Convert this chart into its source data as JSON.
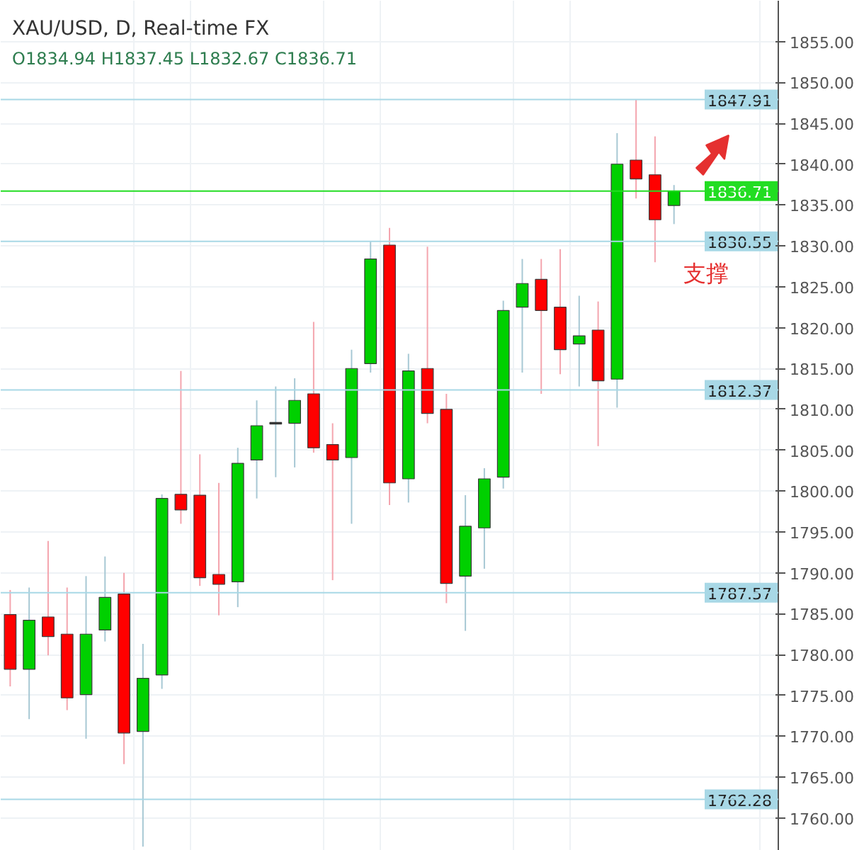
{
  "chart_data": {
    "type": "candlestick",
    "title": "XAU/USD, D, Real-time FX",
    "subtitle": "O1834.94 H1837.45 L1832.67 C1836.71",
    "categories": [
      null,
      null,
      null,
      null,
      null,
      null,
      null,
      null,
      null,
      null,
      null,
      null,
      null,
      null,
      null,
      null,
      null,
      null,
      null,
      null,
      null,
      null,
      null,
      null,
      null,
      null,
      null,
      null,
      null,
      null,
      null,
      null,
      null,
      null,
      null,
      null,
      null,
      null,
      null,
      null,
      null
    ],
    "ohlc": [
      [
        1784.9,
        1787.9,
        1776.1,
        1778.2
      ],
      [
        1778.2,
        1788.2,
        1772.1,
        1784.2
      ],
      [
        1784.6,
        1793.9,
        1779.9,
        1782.2
      ],
      [
        1782.5,
        1788.2,
        1773.2,
        1774.7
      ],
      [
        1775.1,
        1789.6,
        1769.7,
        1782.5
      ],
      [
        1783.0,
        1792.0,
        1781.6,
        1787.0
      ],
      [
        1787.4,
        1790.0,
        1766.6,
        1770.4
      ],
      [
        1770.6,
        1781.3,
        1756.5,
        1777.1
      ],
      [
        1777.5,
        1799.6,
        1775.8,
        1799.1
      ],
      [
        1799.6,
        1814.7,
        1796.0,
        1797.7
      ],
      [
        1799.5,
        1804.5,
        1788.4,
        1789.4
      ],
      [
        1789.8,
        1801.0,
        1784.8,
        1788.6
      ],
      [
        1788.9,
        1805.3,
        1785.8,
        1803.4
      ],
      [
        1803.8,
        1811.1,
        1799.1,
        1808.0
      ],
      [
        1808.2,
        1812.8,
        1801.7,
        1808.4
      ],
      [
        1808.3,
        1813.8,
        1802.9,
        1811.1
      ],
      [
        1811.9,
        1820.7,
        1804.7,
        1805.3
      ],
      [
        1805.7,
        1808.3,
        1789.1,
        1803.8
      ],
      [
        1804.1,
        1817.3,
        1796.0,
        1815.0
      ],
      [
        1815.6,
        1830.6,
        1814.5,
        1828.4
      ],
      [
        1830.1,
        1832.2,
        1798.3,
        1801.0
      ],
      [
        1801.5,
        1816.8,
        1798.6,
        1814.7
      ],
      [
        1815.0,
        1829.9,
        1808.3,
        1809.5
      ],
      [
        1810.0,
        1811.9,
        1786.3,
        1788.7
      ],
      [
        1789.6,
        1799.5,
        1782.9,
        1795.7
      ],
      [
        1795.5,
        1802.8,
        1790.5,
        1801.5
      ],
      [
        1801.7,
        1823.3,
        1800.3,
        1822.1
      ],
      [
        1822.5,
        1828.4,
        1814.5,
        1825.4
      ],
      [
        1825.9,
        1828.4,
        1811.9,
        1822.1
      ],
      [
        1822.5,
        1829.6,
        1814.3,
        1817.3
      ],
      [
        1818.0,
        1823.9,
        1812.8,
        1819.0
      ],
      [
        1819.7,
        1823.2,
        1805.5,
        1813.5
      ],
      [
        1813.7,
        1843.8,
        1810.2,
        1840.0
      ],
      [
        1840.5,
        1847.9,
        1835.8,
        1838.2
      ],
      [
        1838.7,
        1843.4,
        1828.0,
        1833.2
      ],
      [
        1834.94,
        1837.45,
        1832.67,
        1836.71
      ],
      null,
      null,
      null,
      null,
      null
    ],
    "colors": [
      "#ff0000",
      "#00d000",
      "#ff0000",
      "#ff0000",
      "#00d000",
      "#00d000",
      "#ff0000",
      "#00d000",
      "#00d000",
      "#ff0000",
      "#ff0000",
      "#ff0000",
      "#00d000",
      "#00d000",
      "#333333",
      "#00d000",
      "#ff0000",
      "#ff0000",
      "#00d000",
      "#00d000",
      "#ff0000",
      "#00d000",
      "#ff0000",
      "#ff0000",
      "#00d000",
      "#00d000",
      "#00d000",
      "#00d000",
      "#ff0000",
      "#ff0000",
      "#00d000",
      "#ff0000",
      "#00d000",
      "#ff0000",
      "#ff0000",
      "#00d000",
      null,
      null,
      null,
      null,
      null
    ],
    "ylim": [
      1756,
      1860
    ],
    "yticks": [
      {
        "value": 1760,
        "label": "1760.00"
      },
      {
        "value": 1765,
        "label": "1765.00"
      },
      {
        "value": 1770,
        "label": "1770.00"
      },
      {
        "value": 1775,
        "label": "1775.00"
      },
      {
        "value": 1780,
        "label": "1780.00"
      },
      {
        "value": 1785,
        "label": "1785.00"
      },
      {
        "value": 1790,
        "label": "1790.00"
      },
      {
        "value": 1795,
        "label": "1795.00"
      },
      {
        "value": 1800,
        "label": "1800.00"
      },
      {
        "value": 1805,
        "label": "1805.00"
      },
      {
        "value": 1810,
        "label": "1810.00"
      },
      {
        "value": 1815,
        "label": "1815.00"
      },
      {
        "value": 1820,
        "label": "1820.00"
      },
      {
        "value": 1825,
        "label": "1825.00"
      },
      {
        "value": 1830,
        "label": "1830.00"
      },
      {
        "value": 1835,
        "label": "1835.00"
      },
      {
        "value": 1840,
        "label": "1840.00"
      },
      {
        "value": 1845,
        "label": "1845.00"
      },
      {
        "value": 1850,
        "label": "1850.00"
      },
      {
        "value": 1855,
        "label": "1855.00"
      }
    ],
    "ref_lines": [
      {
        "axis": "y",
        "value": 1847.91,
        "label": "1847.91",
        "color": "#a8d8e6"
      },
      {
        "axis": "y",
        "value": 1836.71,
        "label": "1836.71",
        "color": "#22dd22"
      },
      {
        "axis": "y",
        "value": 1830.55,
        "label": "1830.55",
        "color": "#a8d8e6"
      },
      {
        "axis": "y",
        "value": 1812.37,
        "label": "1812.37",
        "color": "#a8d8e6"
      },
      {
        "axis": "y",
        "value": 1787.57,
        "label": "1787.57",
        "color": "#a8d8e6"
      },
      {
        "axis": "y",
        "value": 1762.28,
        "label": "1762.28",
        "color": "#a8d8e6"
      }
    ],
    "annotations": [
      "支撑"
    ],
    "grid": true,
    "tick_labels": "y"
  }
}
